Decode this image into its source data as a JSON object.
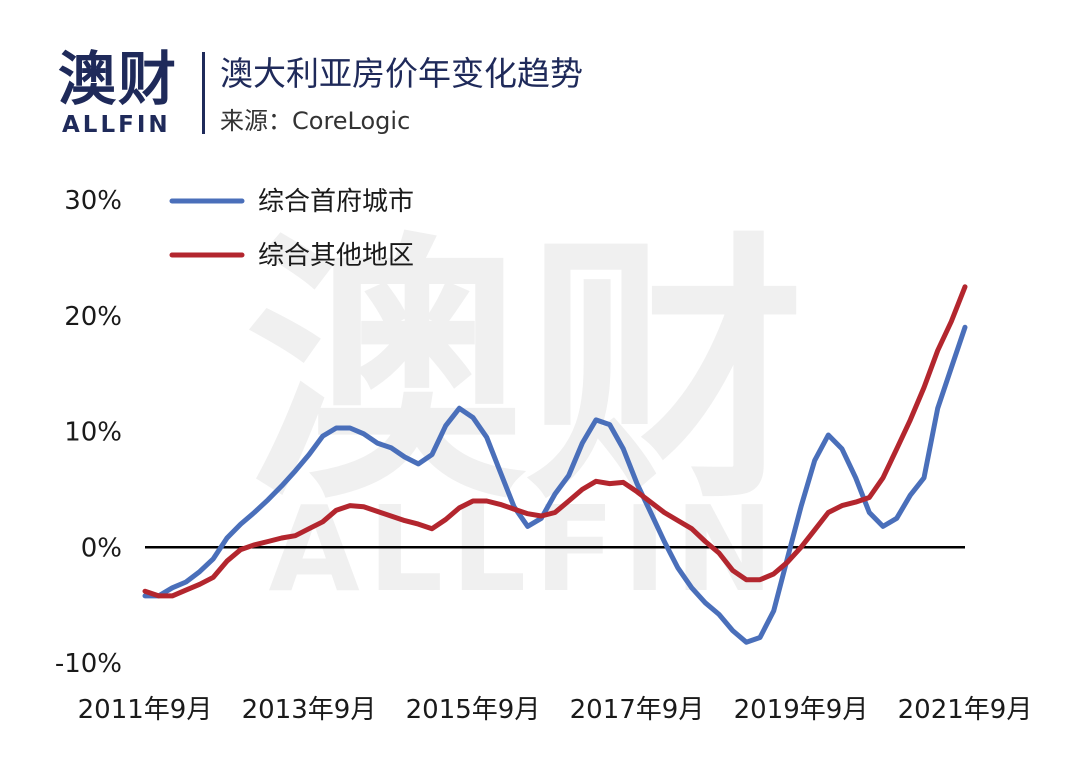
{
  "header": {
    "logo_cn": "澳财",
    "logo_en": "ALLFIN",
    "title": "澳大利亚房价年变化趋势",
    "source": "来源：CoreLogic"
  },
  "watermark": {
    "cn": "澳财",
    "en": "ALLFIN"
  },
  "colors": {
    "brand": "#1f2a5a",
    "capital": "#4a6fba",
    "regional": "#b3262e",
    "zero_line": "#000000"
  },
  "chart_data": {
    "type": "line",
    "x_type": "date",
    "xlim": [
      "2011-09",
      "2021-09"
    ],
    "ylim": [
      -10,
      30
    ],
    "y_ticks": [
      30,
      20,
      10,
      0,
      -10
    ],
    "y_tick_labels": [
      "30%",
      "20%",
      "10%",
      "0%",
      "-10%"
    ],
    "x_ticks": [
      "2011-09",
      "2013-09",
      "2015-09",
      "2017-09",
      "2019-09",
      "2021-09"
    ],
    "x_tick_labels": [
      "2011年9月",
      "2013年9月",
      "2015年9月",
      "2017年9月",
      "2019年9月",
      "2021年9月"
    ],
    "grid": false,
    "legend_position": "top-left",
    "zero_line": true,
    "series": [
      {
        "name": "综合首府城市",
        "color": "#4a6fba",
        "points": [
          [
            "2011-09",
            -4.2
          ],
          [
            "2011-11",
            -4.2
          ],
          [
            "2012-01",
            -3.5
          ],
          [
            "2012-03",
            -3.0
          ],
          [
            "2012-05",
            -2.1
          ],
          [
            "2012-07",
            -1.0
          ],
          [
            "2012-09",
            0.8
          ],
          [
            "2012-11",
            2.0
          ],
          [
            "2013-01",
            3.0
          ],
          [
            "2013-03",
            4.1
          ],
          [
            "2013-05",
            5.3
          ],
          [
            "2013-07",
            6.6
          ],
          [
            "2013-09",
            8.0
          ],
          [
            "2013-11",
            9.6
          ],
          [
            "2014-01",
            10.3
          ],
          [
            "2014-03",
            10.3
          ],
          [
            "2014-05",
            9.8
          ],
          [
            "2014-07",
            9.0
          ],
          [
            "2014-09",
            8.6
          ],
          [
            "2014-11",
            7.8
          ],
          [
            "2015-01",
            7.2
          ],
          [
            "2015-03",
            8.0
          ],
          [
            "2015-05",
            10.5
          ],
          [
            "2015-07",
            12.0
          ],
          [
            "2015-09",
            11.2
          ],
          [
            "2015-11",
            9.5
          ],
          [
            "2016-01",
            6.5
          ],
          [
            "2016-03",
            3.5
          ],
          [
            "2016-05",
            1.8
          ],
          [
            "2016-07",
            2.5
          ],
          [
            "2016-09",
            4.6
          ],
          [
            "2016-11",
            6.2
          ],
          [
            "2017-01",
            9.0
          ],
          [
            "2017-03",
            11.0
          ],
          [
            "2017-05",
            10.6
          ],
          [
            "2017-07",
            8.5
          ],
          [
            "2017-09",
            5.5
          ],
          [
            "2017-11",
            3.0
          ],
          [
            "2018-01",
            0.5
          ],
          [
            "2018-03",
            -1.8
          ],
          [
            "2018-05",
            -3.5
          ],
          [
            "2018-07",
            -4.8
          ],
          [
            "2018-09",
            -5.8
          ],
          [
            "2018-11",
            -7.2
          ],
          [
            "2019-01",
            -8.2
          ],
          [
            "2019-03",
            -7.8
          ],
          [
            "2019-05",
            -5.5
          ],
          [
            "2019-07",
            -1.0
          ],
          [
            "2019-09",
            3.5
          ],
          [
            "2019-11",
            7.5
          ],
          [
            "2020-01",
            9.7
          ],
          [
            "2020-03",
            8.5
          ],
          [
            "2020-05",
            6.0
          ],
          [
            "2020-07",
            3.0
          ],
          [
            "2020-09",
            1.8
          ],
          [
            "2020-11",
            2.5
          ],
          [
            "2021-01",
            4.5
          ],
          [
            "2021-03",
            6.0
          ],
          [
            "2021-05",
            12.0
          ],
          [
            "2021-07",
            15.5
          ],
          [
            "2021-09",
            19.0
          ]
        ]
      },
      {
        "name": "综合其他地区",
        "color": "#b3262e",
        "points": [
          [
            "2011-09",
            -3.8
          ],
          [
            "2011-11",
            -4.2
          ],
          [
            "2012-01",
            -4.2
          ],
          [
            "2012-03",
            -3.7
          ],
          [
            "2012-05",
            -3.2
          ],
          [
            "2012-07",
            -2.6
          ],
          [
            "2012-09",
            -1.2
          ],
          [
            "2012-11",
            -0.2
          ],
          [
            "2013-01",
            0.2
          ],
          [
            "2013-03",
            0.5
          ],
          [
            "2013-05",
            0.8
          ],
          [
            "2013-07",
            1.0
          ],
          [
            "2013-09",
            1.6
          ],
          [
            "2013-11",
            2.2
          ],
          [
            "2014-01",
            3.2
          ],
          [
            "2014-03",
            3.6
          ],
          [
            "2014-05",
            3.5
          ],
          [
            "2014-07",
            3.1
          ],
          [
            "2014-09",
            2.7
          ],
          [
            "2014-11",
            2.3
          ],
          [
            "2015-01",
            2.0
          ],
          [
            "2015-03",
            1.6
          ],
          [
            "2015-05",
            2.4
          ],
          [
            "2015-07",
            3.4
          ],
          [
            "2015-09",
            4.0
          ],
          [
            "2015-11",
            4.0
          ],
          [
            "2016-01",
            3.7
          ],
          [
            "2016-03",
            3.3
          ],
          [
            "2016-05",
            2.9
          ],
          [
            "2016-07",
            2.7
          ],
          [
            "2016-09",
            3.0
          ],
          [
            "2016-11",
            4.0
          ],
          [
            "2017-01",
            5.0
          ],
          [
            "2017-03",
            5.7
          ],
          [
            "2017-05",
            5.5
          ],
          [
            "2017-07",
            5.6
          ],
          [
            "2017-09",
            4.8
          ],
          [
            "2017-11",
            3.9
          ],
          [
            "2018-01",
            3.0
          ],
          [
            "2018-03",
            2.3
          ],
          [
            "2018-05",
            1.6
          ],
          [
            "2018-07",
            0.5
          ],
          [
            "2018-09",
            -0.5
          ],
          [
            "2018-11",
            -2.0
          ],
          [
            "2019-01",
            -2.8
          ],
          [
            "2019-03",
            -2.8
          ],
          [
            "2019-05",
            -2.3
          ],
          [
            "2019-07",
            -1.3
          ],
          [
            "2019-09",
            0.0
          ],
          [
            "2019-11",
            1.5
          ],
          [
            "2020-01",
            3.0
          ],
          [
            "2020-03",
            3.6
          ],
          [
            "2020-05",
            3.9
          ],
          [
            "2020-07",
            4.3
          ],
          [
            "2020-09",
            6.0
          ],
          [
            "2020-11",
            8.5
          ],
          [
            "2021-01",
            11.0
          ],
          [
            "2021-03",
            13.8
          ],
          [
            "2021-05",
            17.0
          ],
          [
            "2021-07",
            19.5
          ],
          [
            "2021-09",
            22.5
          ]
        ]
      }
    ]
  }
}
